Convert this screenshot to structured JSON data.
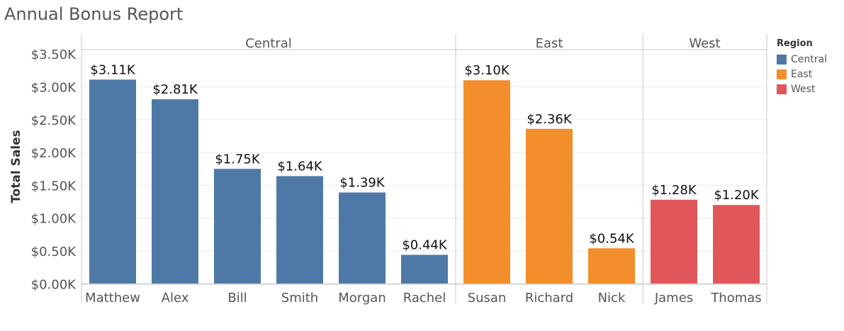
{
  "chart_data": {
    "type": "bar",
    "title": "Annual Bonus Report",
    "ylabel": "Total Sales",
    "xlabel": "",
    "ylim": [
      -0.14,
      3.65
    ],
    "y_ticks": [
      0,
      0.5,
      1.0,
      1.5,
      2.0,
      2.5,
      3.0,
      3.5
    ],
    "y_tick_labels": [
      "$0.00K",
      "$0.50K",
      "$1.00K",
      "$1.50K",
      "$2.00K",
      "$2.50K",
      "$3.00K",
      "$3.50K"
    ],
    "legend": {
      "title": "Region",
      "position": "right",
      "items": [
        {
          "label": "Central",
          "color": "#4e79a7"
        },
        {
          "label": "East",
          "color": "#f28e2b"
        },
        {
          "label": "West",
          "color": "#e15759"
        }
      ]
    },
    "panels": [
      {
        "name": "Central",
        "color": "#4e79a7",
        "categories": [
          "Matthew",
          "Alex",
          "Bill",
          "Smith",
          "Morgan",
          "Rachel"
        ],
        "values": [
          3.11,
          2.81,
          1.75,
          1.64,
          1.39,
          0.44
        ],
        "labels": [
          "$3.11K",
          "$2.81K",
          "$1.75K",
          "$1.64K",
          "$1.39K",
          "$0.44K"
        ]
      },
      {
        "name": "East",
        "color": "#f28e2b",
        "categories": [
          "Susan",
          "Richard",
          "Nick"
        ],
        "values": [
          3.1,
          2.36,
          0.54
        ],
        "labels": [
          "$3.10K",
          "$2.36K",
          "$0.54K"
        ]
      },
      {
        "name": "West",
        "color": "#e15759",
        "categories": [
          "James",
          "Thomas"
        ],
        "values": [
          1.28,
          1.2
        ],
        "labels": [
          "$1.28K",
          "$1.20K"
        ]
      }
    ]
  }
}
